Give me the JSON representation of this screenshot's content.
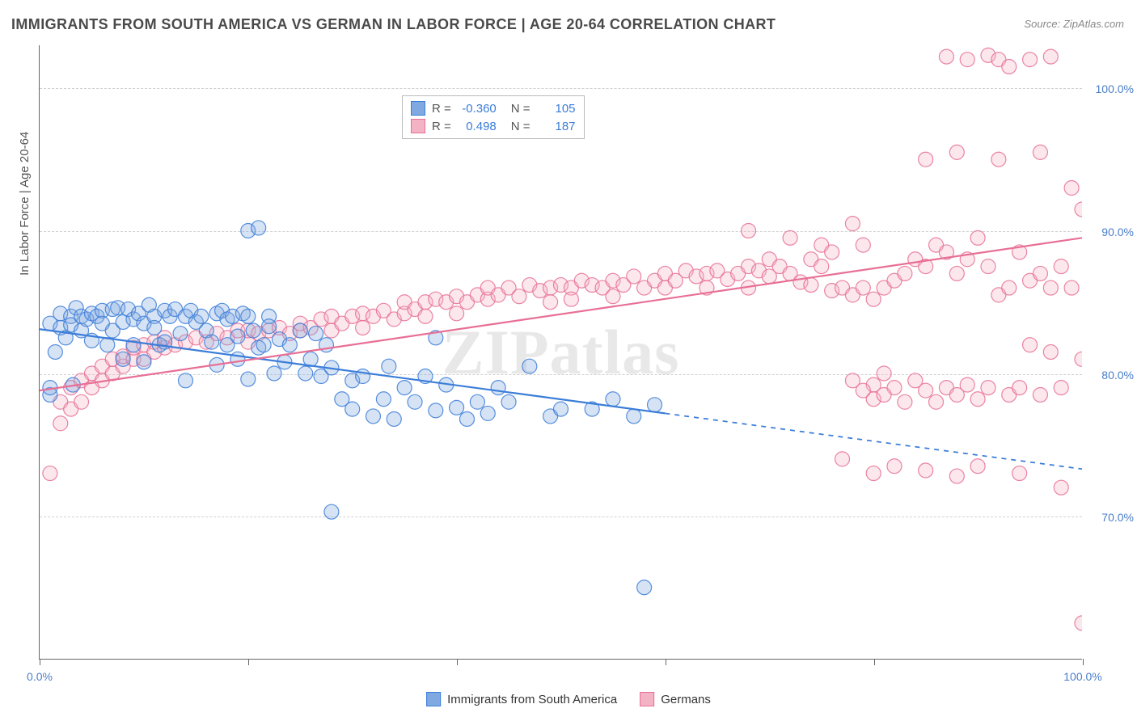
{
  "title": "IMMIGRANTS FROM SOUTH AMERICA VS GERMAN IN LABOR FORCE | AGE 20-64 CORRELATION CHART",
  "source": "Source: ZipAtlas.com",
  "ylabel": "In Labor Force | Age 20-64",
  "watermark": "ZIPatlas",
  "chart": {
    "type": "scatter-with-trend",
    "background_color": "#ffffff",
    "grid_color": "#d0d0d0",
    "axis_color": "#666666",
    "tick_label_color": "#4a7ec8",
    "label_color": "#555555",
    "title_color": "#4a4a4a",
    "title_fontsize": 18,
    "tick_fontsize": 14,
    "label_fontsize": 15,
    "xlim": [
      0,
      100
    ],
    "ylim": [
      60,
      103
    ],
    "xticks": [
      0,
      20,
      40,
      60,
      80,
      100
    ],
    "xtick_labels": [
      "0.0%",
      "",
      "",
      "",
      "",
      "100.0%"
    ],
    "yticks": [
      70,
      80,
      90,
      100
    ],
    "ytick_labels": [
      "70.0%",
      "80.0%",
      "90.0%",
      "100.0%"
    ],
    "marker_radius": 9,
    "marker_fill_opacity": 0.32,
    "line_width": 2.2,
    "series": [
      {
        "name": "Immigrants from South America",
        "R": "-0.360",
        "N": "105",
        "color_fill": "#7fa9e0",
        "color_stroke": "#3b7dd8",
        "trend": {
          "x1": 0,
          "y1": 83.1,
          "x2": 60,
          "y2": 77.2,
          "solid_to_x": 60,
          "dash_to_x": 100,
          "dash_y2": 73.3
        },
        "points": [
          [
            1,
            78.5
          ],
          [
            1,
            83.5
          ],
          [
            1.5,
            81.5
          ],
          [
            2,
            83.2
          ],
          [
            2,
            84.2
          ],
          [
            2.5,
            82.5
          ],
          [
            3,
            84.0
          ],
          [
            3,
            83.4
          ],
          [
            3.2,
            79.2
          ],
          [
            1,
            79.0
          ],
          [
            3.5,
            84.6
          ],
          [
            4,
            84.0
          ],
          [
            4,
            83.0
          ],
          [
            4.5,
            83.8
          ],
          [
            5,
            84.2
          ],
          [
            5,
            82.3
          ],
          [
            5.5,
            84.0
          ],
          [
            6,
            84.4
          ],
          [
            6,
            83.5
          ],
          [
            6.5,
            82.0
          ],
          [
            7,
            84.5
          ],
          [
            7,
            83.0
          ],
          [
            7.5,
            84.6
          ],
          [
            8,
            81.0
          ],
          [
            8,
            83.6
          ],
          [
            8.5,
            84.5
          ],
          [
            9,
            83.8
          ],
          [
            9,
            82.0
          ],
          [
            9.5,
            84.2
          ],
          [
            10,
            83.5
          ],
          [
            10,
            80.8
          ],
          [
            10.5,
            84.8
          ],
          [
            11,
            84.0
          ],
          [
            11,
            83.2
          ],
          [
            11.5,
            82.0
          ],
          [
            12,
            84.4
          ],
          [
            12,
            82.2
          ],
          [
            12.5,
            84.0
          ],
          [
            13,
            84.5
          ],
          [
            13.5,
            82.8
          ],
          [
            14,
            84.0
          ],
          [
            14,
            79.5
          ],
          [
            14.5,
            84.4
          ],
          [
            15,
            83.6
          ],
          [
            15.5,
            84.0
          ],
          [
            16,
            83.0
          ],
          [
            16.5,
            82.2
          ],
          [
            17,
            84.2
          ],
          [
            17,
            80.6
          ],
          [
            17.5,
            84.4
          ],
          [
            18,
            83.8
          ],
          [
            18,
            82.0
          ],
          [
            18.5,
            84.0
          ],
          [
            19,
            82.6
          ],
          [
            19,
            81.0
          ],
          [
            19.5,
            84.2
          ],
          [
            20,
            84.0
          ],
          [
            20,
            79.6
          ],
          [
            20.5,
            83.0
          ],
          [
            21,
            81.8
          ],
          [
            21.5,
            82.0
          ],
          [
            22,
            84.0
          ],
          [
            22,
            83.3
          ],
          [
            22.5,
            80.0
          ],
          [
            23,
            82.4
          ],
          [
            23.5,
            80.8
          ],
          [
            24,
            82.0
          ],
          [
            25,
            83.0
          ],
          [
            25.5,
            80.0
          ],
          [
            26,
            81.0
          ],
          [
            26.5,
            82.8
          ],
          [
            27,
            79.8
          ],
          [
            27.5,
            82.0
          ],
          [
            28,
            80.4
          ],
          [
            29,
            78.2
          ],
          [
            30,
            79.5
          ],
          [
            30,
            77.5
          ],
          [
            31,
            79.8
          ],
          [
            32,
            77.0
          ],
          [
            33,
            78.2
          ],
          [
            33.5,
            80.5
          ],
          [
            34,
            76.8
          ],
          [
            35,
            79.0
          ],
          [
            36,
            78.0
          ],
          [
            37,
            79.8
          ],
          [
            38,
            77.4
          ],
          [
            39,
            79.2
          ],
          [
            40,
            77.6
          ],
          [
            41,
            76.8
          ],
          [
            42,
            78.0
          ],
          [
            43,
            77.2
          ],
          [
            44,
            79.0
          ],
          [
            45,
            78.0
          ],
          [
            47,
            80.5
          ],
          [
            49,
            77.0
          ],
          [
            50,
            77.5
          ],
          [
            53,
            77.5
          ],
          [
            55,
            78.2
          ],
          [
            57,
            77.0
          ],
          [
            59,
            77.8
          ],
          [
            20,
            90.0
          ],
          [
            21,
            90.2
          ],
          [
            28,
            70.3
          ],
          [
            58,
            65.0
          ],
          [
            38,
            82.5
          ]
        ]
      },
      {
        "name": "Germans",
        "R": "0.498",
        "N": "187",
        "color_fill": "#f4b3c5",
        "color_stroke": "#e86f95",
        "trend": {
          "x1": 0,
          "y1": 78.8,
          "x2": 100,
          "y2": 89.5,
          "solid_to_x": 100
        },
        "points": [
          [
            1,
            73.0
          ],
          [
            2,
            76.5
          ],
          [
            2,
            78.0
          ],
          [
            3,
            77.5
          ],
          [
            3,
            79.0
          ],
          [
            4,
            78.0
          ],
          [
            4,
            79.5
          ],
          [
            5,
            79.0
          ],
          [
            5,
            80.0
          ],
          [
            6,
            79.5
          ],
          [
            6,
            80.5
          ],
          [
            7,
            80.0
          ],
          [
            7,
            81.0
          ],
          [
            8,
            80.5
          ],
          [
            8,
            81.2
          ],
          [
            9,
            81.0
          ],
          [
            9,
            81.8
          ],
          [
            10,
            81.0
          ],
          [
            10,
            82.0
          ],
          [
            11,
            81.5
          ],
          [
            11,
            82.2
          ],
          [
            12,
            81.8
          ],
          [
            12,
            82.5
          ],
          [
            13,
            82.0
          ],
          [
            14,
            82.2
          ],
          [
            15,
            82.5
          ],
          [
            16,
            82.2
          ],
          [
            17,
            82.8
          ],
          [
            18,
            82.5
          ],
          [
            19,
            83.0
          ],
          [
            20,
            82.2
          ],
          [
            20,
            83.0
          ],
          [
            21,
            82.8
          ],
          [
            22,
            83.0
          ],
          [
            23,
            83.2
          ],
          [
            24,
            82.8
          ],
          [
            25,
            83.0
          ],
          [
            25,
            83.5
          ],
          [
            26,
            83.2
          ],
          [
            27,
            83.8
          ],
          [
            28,
            83.0
          ],
          [
            28,
            84.0
          ],
          [
            29,
            83.5
          ],
          [
            30,
            84.0
          ],
          [
            31,
            83.2
          ],
          [
            31,
            84.2
          ],
          [
            32,
            84.0
          ],
          [
            33,
            84.4
          ],
          [
            34,
            83.8
          ],
          [
            35,
            84.2
          ],
          [
            35,
            85.0
          ],
          [
            36,
            84.5
          ],
          [
            37,
            85.0
          ],
          [
            37,
            84.0
          ],
          [
            38,
            85.2
          ],
          [
            39,
            85.0
          ],
          [
            40,
            85.4
          ],
          [
            40,
            84.2
          ],
          [
            41,
            85.0
          ],
          [
            42,
            85.5
          ],
          [
            43,
            85.2
          ],
          [
            43,
            86.0
          ],
          [
            44,
            85.5
          ],
          [
            45,
            86.0
          ],
          [
            46,
            85.4
          ],
          [
            47,
            86.2
          ],
          [
            48,
            85.8
          ],
          [
            49,
            86.0
          ],
          [
            49,
            85.0
          ],
          [
            50,
            86.2
          ],
          [
            51,
            86.0
          ],
          [
            51,
            85.2
          ],
          [
            52,
            86.5
          ],
          [
            53,
            86.2
          ],
          [
            54,
            86.0
          ],
          [
            55,
            86.5
          ],
          [
            55,
            85.4
          ],
          [
            56,
            86.2
          ],
          [
            57,
            86.8
          ],
          [
            58,
            86.0
          ],
          [
            59,
            86.5
          ],
          [
            60,
            86.0
          ],
          [
            60,
            87.0
          ],
          [
            61,
            86.5
          ],
          [
            62,
            87.2
          ],
          [
            63,
            86.8
          ],
          [
            64,
            87.0
          ],
          [
            64,
            86.0
          ],
          [
            65,
            87.2
          ],
          [
            66,
            86.6
          ],
          [
            67,
            87.0
          ],
          [
            68,
            87.5
          ],
          [
            68,
            86.0
          ],
          [
            69,
            87.2
          ],
          [
            70,
            86.8
          ],
          [
            70,
            88.0
          ],
          [
            71,
            87.5
          ],
          [
            72,
            87.0
          ],
          [
            73,
            86.4
          ],
          [
            74,
            88.0
          ],
          [
            74,
            86.2
          ],
          [
            75,
            87.5
          ],
          [
            75,
            89.0
          ],
          [
            76,
            85.8
          ],
          [
            76,
            88.5
          ],
          [
            77,
            86.0
          ],
          [
            78,
            90.5
          ],
          [
            78,
            85.5
          ],
          [
            79,
            86.0
          ],
          [
            79,
            89.0
          ],
          [
            80,
            85.2
          ],
          [
            80,
            79.2
          ],
          [
            80,
            78.2
          ],
          [
            81,
            86.0
          ],
          [
            81,
            80.0
          ],
          [
            82,
            79.0
          ],
          [
            82,
            86.5
          ],
          [
            83,
            78.0
          ],
          [
            83,
            87.0
          ],
          [
            84,
            79.5
          ],
          [
            84,
            88.0
          ],
          [
            85,
            78.8
          ],
          [
            85,
            87.5
          ],
          [
            85,
            95.0
          ],
          [
            86,
            78.0
          ],
          [
            86,
            89.0
          ],
          [
            87,
            79.0
          ],
          [
            87,
            88.5
          ],
          [
            87,
            102.2
          ],
          [
            88,
            95.5
          ],
          [
            88,
            78.5
          ],
          [
            88,
            87.0
          ],
          [
            89,
            79.2
          ],
          [
            89,
            88.0
          ],
          [
            89,
            102.0
          ],
          [
            90,
            78.2
          ],
          [
            90,
            89.5
          ],
          [
            90,
            73.5
          ],
          [
            91,
            87.5
          ],
          [
            91,
            102.3
          ],
          [
            91,
            79.0
          ],
          [
            92,
            85.5
          ],
          [
            92,
            95.0
          ],
          [
            92,
            102.0
          ],
          [
            77,
            74.0
          ],
          [
            93,
            86.0
          ],
          [
            93,
            78.5
          ],
          [
            93,
            101.5
          ],
          [
            94,
            88.5
          ],
          [
            94,
            79.0
          ],
          [
            94,
            73.0
          ],
          [
            95,
            86.5
          ],
          [
            95,
            82.0
          ],
          [
            95,
            102.0
          ],
          [
            96,
            87.0
          ],
          [
            96,
            78.5
          ],
          [
            96,
            95.5
          ],
          [
            97,
            86.0
          ],
          [
            97,
            81.5
          ],
          [
            97,
            102.2
          ],
          [
            98,
            87.5
          ],
          [
            98,
            79.0
          ],
          [
            98,
            72.0
          ],
          [
            99,
            86.0
          ],
          [
            99,
            93.0
          ],
          [
            100,
            91.5
          ],
          [
            100,
            81.0
          ],
          [
            100,
            62.5
          ],
          [
            68,
            90.0
          ],
          [
            72,
            89.5
          ],
          [
            80,
            73.0
          ],
          [
            82,
            73.5
          ],
          [
            85,
            73.2
          ],
          [
            88,
            72.8
          ],
          [
            78,
            79.5
          ],
          [
            79,
            78.8
          ],
          [
            81,
            78.5
          ]
        ]
      }
    ]
  },
  "legend_bottom": [
    {
      "label": "Immigrants from South America",
      "fill": "#7fa9e0",
      "stroke": "#3b7dd8"
    },
    {
      "label": "Germans",
      "fill": "#f4b3c5",
      "stroke": "#e86f95"
    }
  ]
}
